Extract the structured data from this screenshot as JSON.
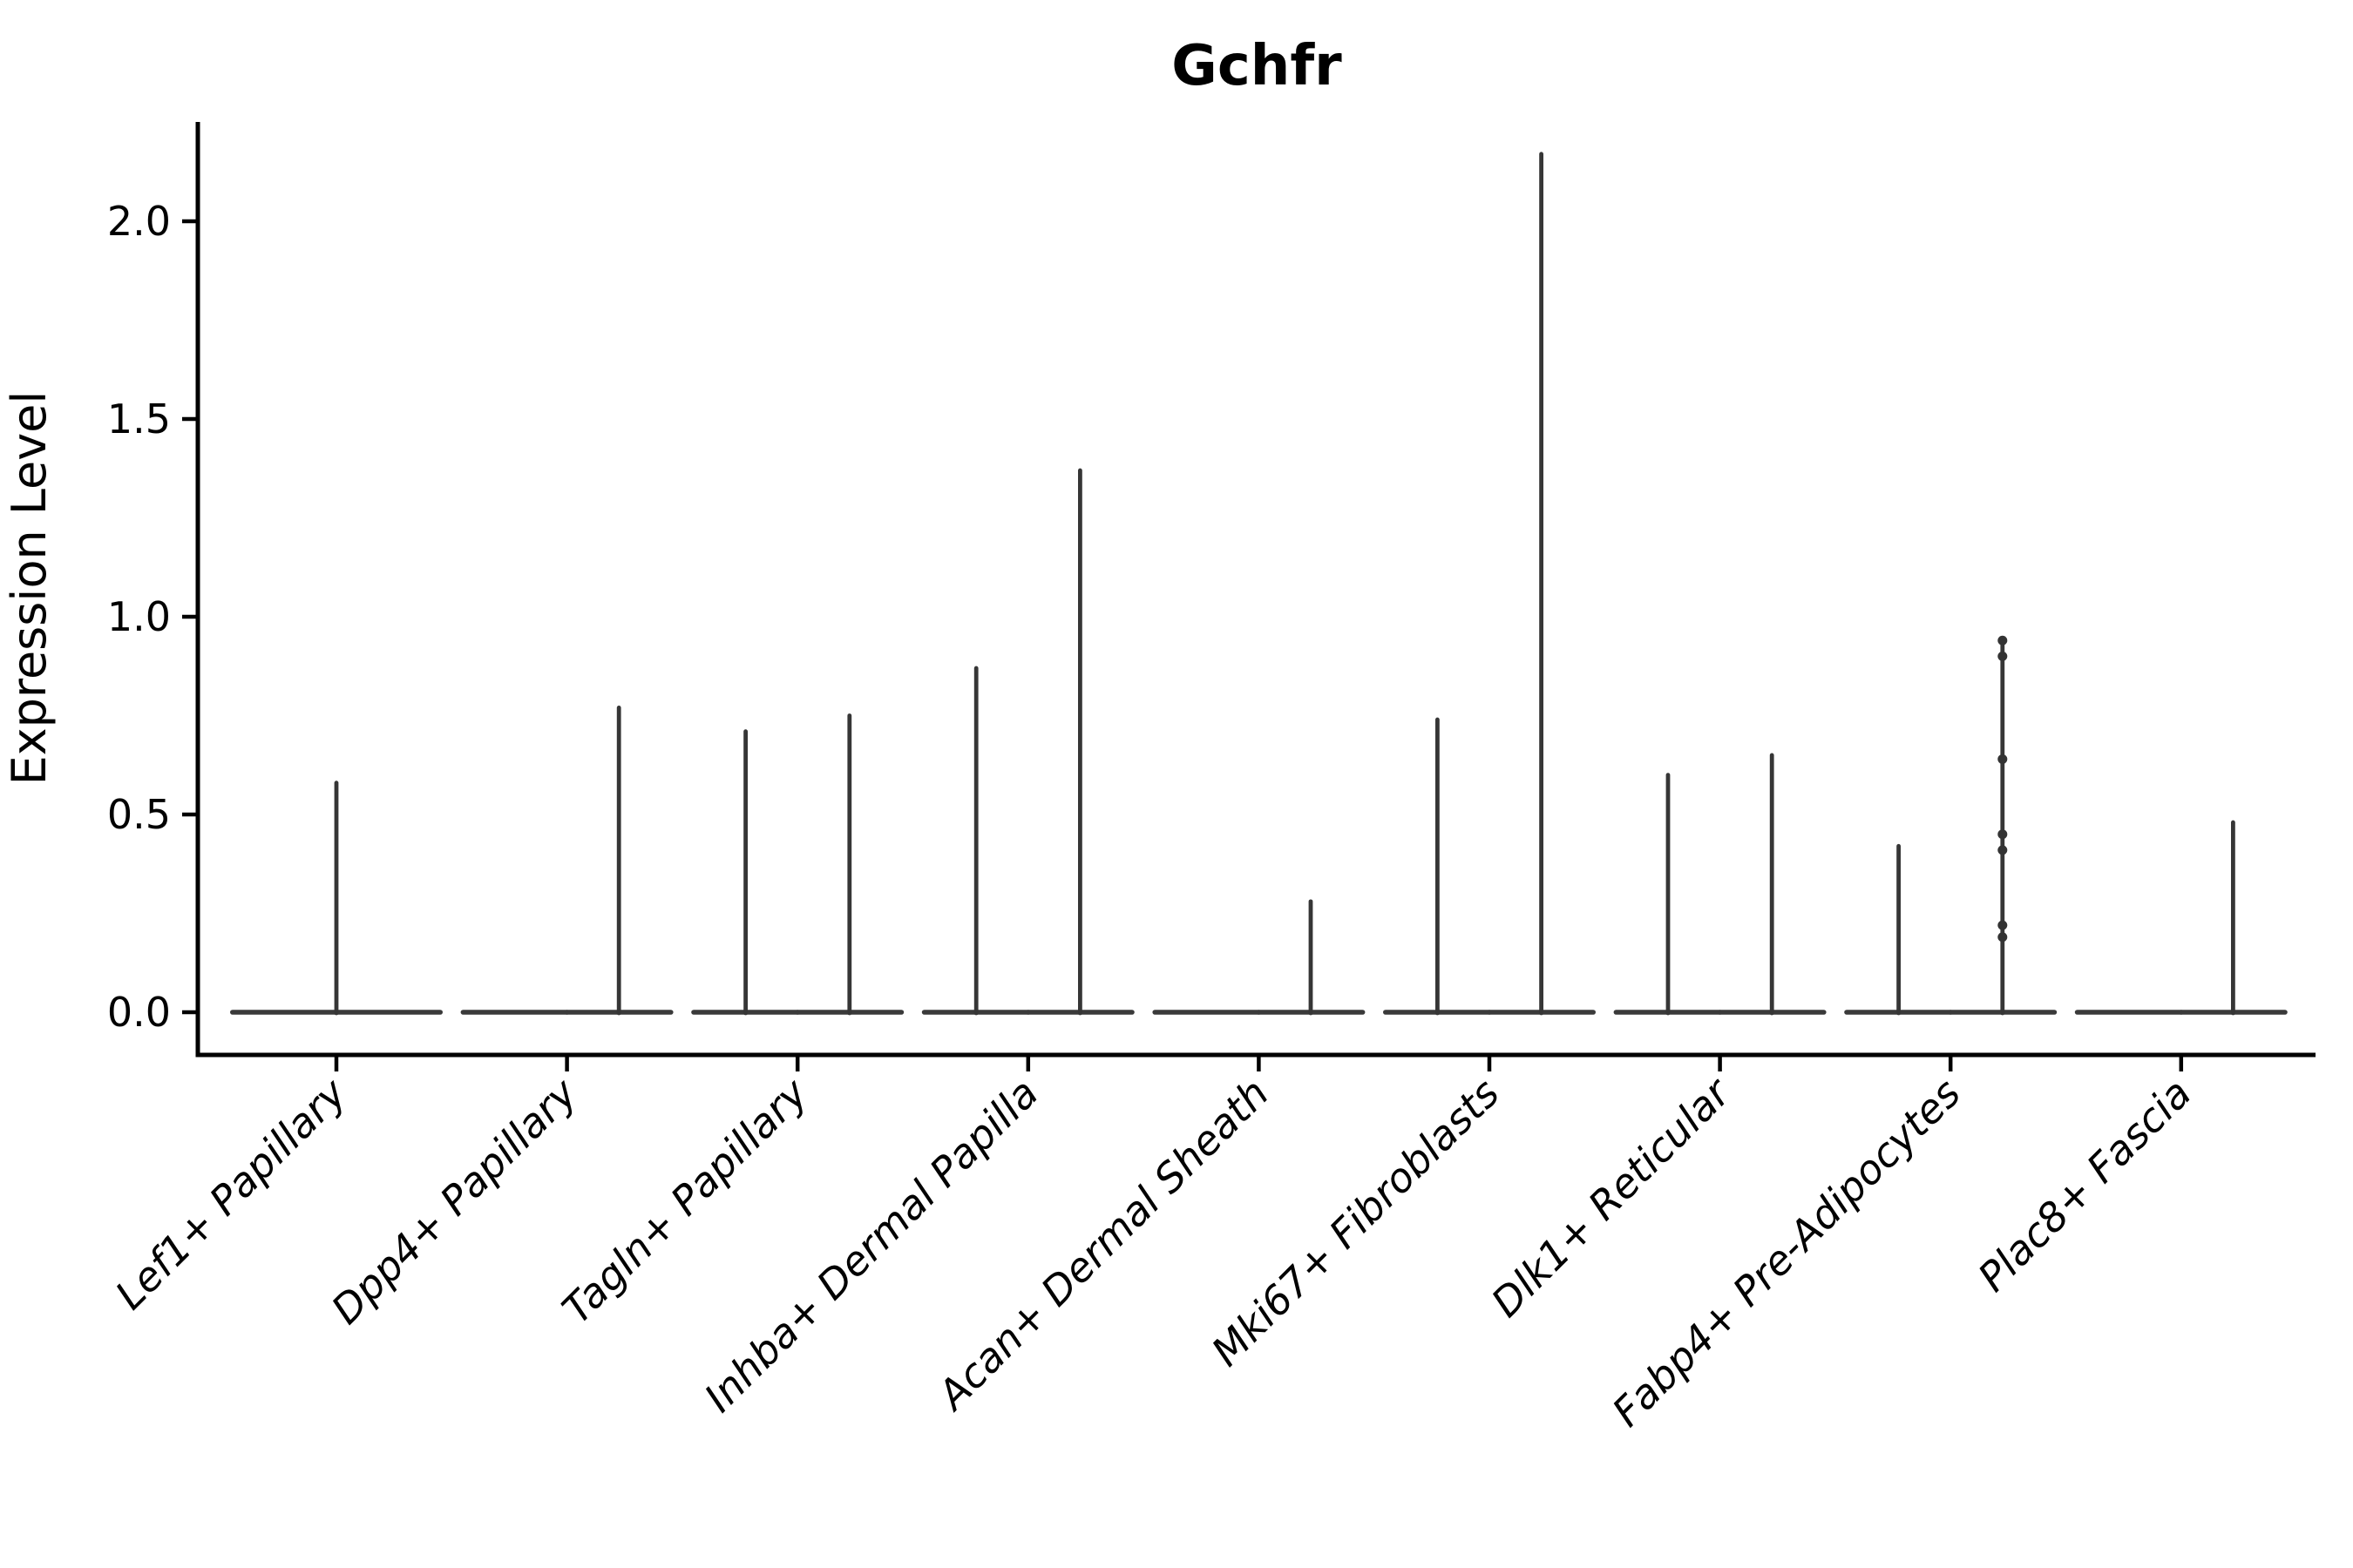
{
  "figure": {
    "title": "Gchfr",
    "y_axis_label": "Expression Level"
  },
  "chart_data": {
    "type": "violin",
    "title": "Gchfr",
    "xlabel": "",
    "ylabel": "Expression Level",
    "ylim": [
      -0.11,
      2.25
    ],
    "yticks": [
      0.0,
      0.5,
      1.0,
      1.5,
      2.0
    ],
    "ytick_labels": [
      "0.0",
      "0.5",
      "1.0",
      "1.5",
      "2.0"
    ],
    "grid": false,
    "legend": "none",
    "style": {
      "axis_color": "#000000",
      "violin_stroke": "#3a3a3a",
      "spike_stroke": "#363636",
      "point_color": "#333333",
      "background": "#ffffff"
    },
    "categories": [
      "Lef1+ Papillary",
      "Dpp4+ Papillary",
      "Tagln+ Papillary",
      "Inhba+ Dermal Papilla",
      "Acan+ Dermal Sheath",
      "Mki67+ Fibroblasts",
      "Dlk1+ Reticular",
      "Fabp4+ Pre-Adipocytes",
      "Plac8+ Fascia"
    ],
    "series": [
      {
        "category": "Lef1+ Papillary",
        "violins": [
          {
            "position": "center",
            "max_expression": 0.58,
            "points": []
          }
        ]
      },
      {
        "category": "Dpp4+ Papillary",
        "violins": [
          {
            "position": "left",
            "max_expression": 0.0,
            "points": []
          },
          {
            "position": "right",
            "max_expression": 0.77,
            "points": []
          }
        ]
      },
      {
        "category": "Tagln+ Papillary",
        "violins": [
          {
            "position": "left",
            "max_expression": 0.71,
            "points": []
          },
          {
            "position": "right",
            "max_expression": 0.75,
            "points": []
          }
        ]
      },
      {
        "category": "Inhba+ Dermal Papilla",
        "violins": [
          {
            "position": "left",
            "max_expression": 0.87,
            "points": []
          },
          {
            "position": "right",
            "max_expression": 1.37,
            "points": []
          }
        ]
      },
      {
        "category": "Acan+ Dermal Sheath",
        "violins": [
          {
            "position": "left",
            "max_expression": 0.0,
            "points": []
          },
          {
            "position": "right",
            "max_expression": 0.28,
            "points": []
          }
        ]
      },
      {
        "category": "Mki67+ Fibroblasts",
        "violins": [
          {
            "position": "left",
            "max_expression": 0.74,
            "points": []
          },
          {
            "position": "right",
            "max_expression": 2.17,
            "points": []
          }
        ]
      },
      {
        "category": "Dlk1+ Reticular",
        "violins": [
          {
            "position": "left",
            "max_expression": 0.6,
            "points": []
          },
          {
            "position": "right",
            "max_expression": 0.65,
            "points": []
          }
        ]
      },
      {
        "category": "Fabp4+ Pre-Adipocytes",
        "violins": [
          {
            "position": "left",
            "max_expression": 0.42,
            "points": []
          },
          {
            "position": "right",
            "max_expression": 0.94,
            "points": [
              0.94,
              0.9,
              0.64,
              0.45,
              0.41,
              0.22,
              0.19
            ]
          }
        ]
      },
      {
        "category": "Plac8+ Fascia",
        "violins": [
          {
            "position": "left",
            "max_expression": 0.0,
            "points": []
          },
          {
            "position": "right",
            "max_expression": 0.48,
            "points": []
          }
        ]
      }
    ]
  }
}
